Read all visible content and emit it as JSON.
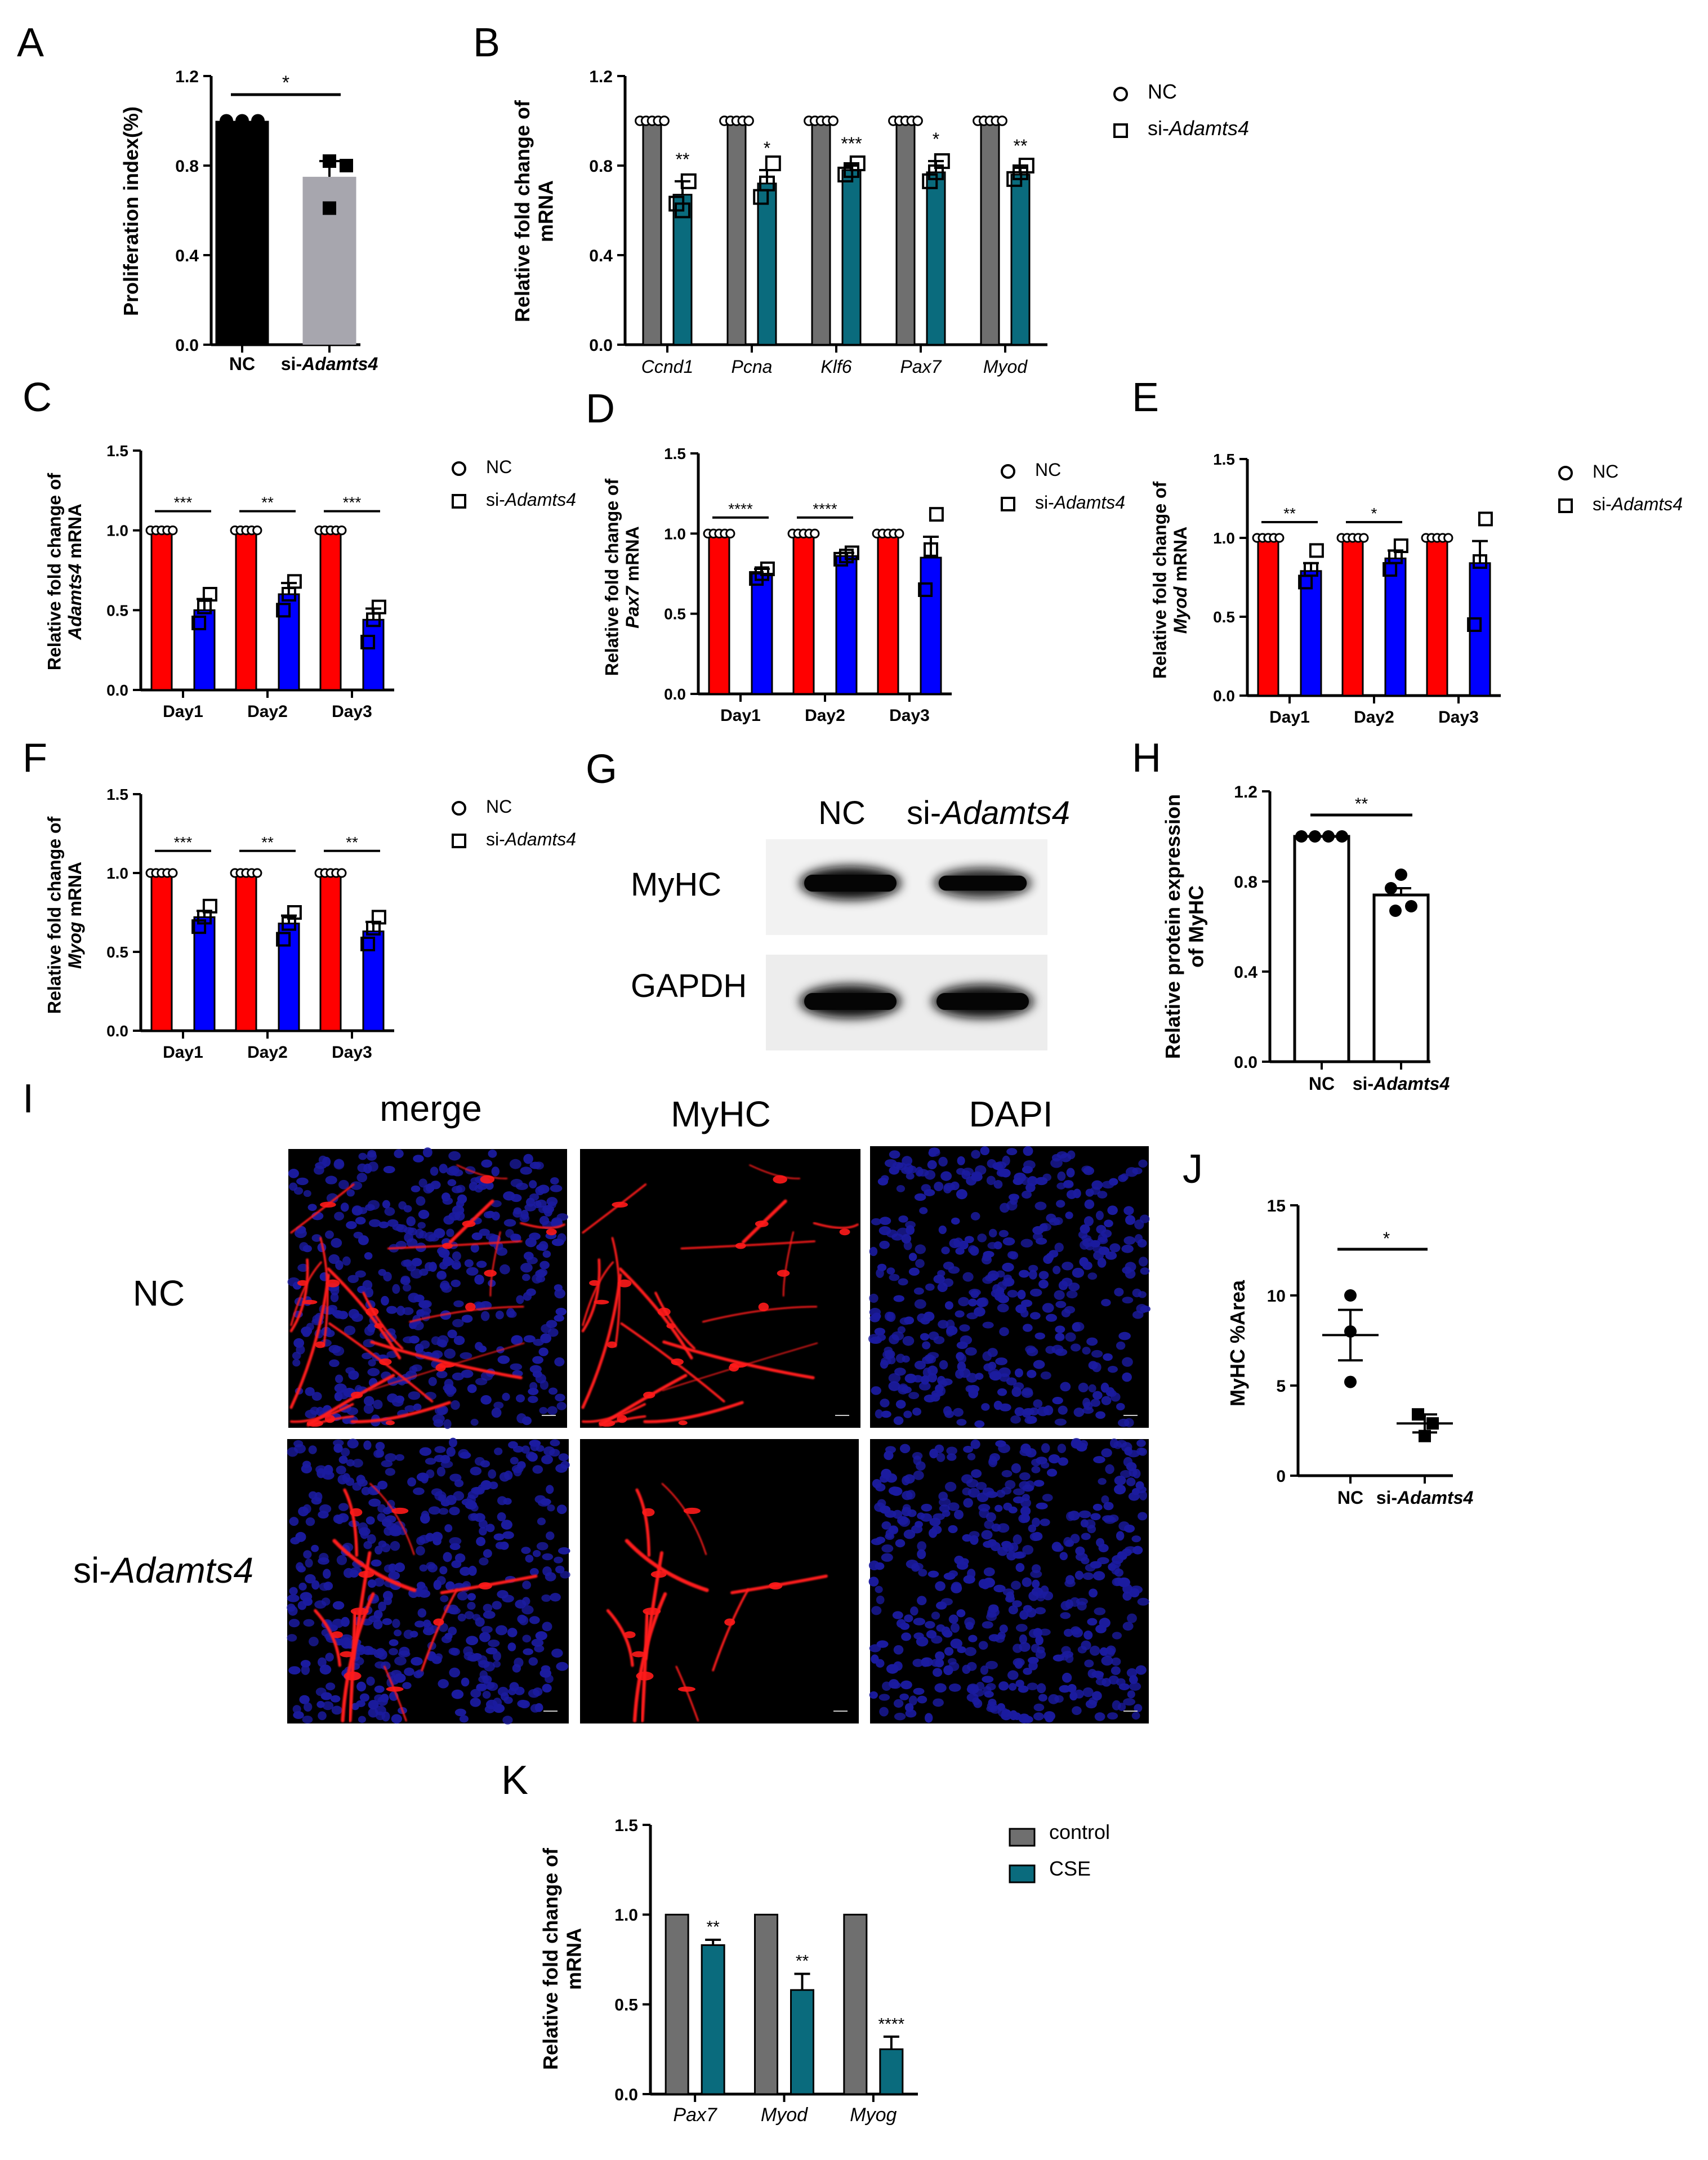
{
  "panel_letters": [
    "A",
    "B",
    "C",
    "D",
    "E",
    "F",
    "G",
    "H",
    "I",
    "J",
    "K"
  ],
  "colors": {
    "black": "#000000",
    "gray": "#a7a6ae",
    "dark_gray": "#6f6f6f",
    "teal": "#0a6b7d",
    "red": "#ff0000",
    "blue": "#0000ff",
    "img_blue": "#1b1ba0",
    "img_red": "#ff1a1a",
    "img_bg": "#000000"
  },
  "chart_data": [
    {
      "id": "A",
      "type": "bar",
      "ylabel": "Proliferation index(%)",
      "ylim": [
        0,
        1.2
      ],
      "yticks": [
        "0.0",
        "0.4",
        "0.8",
        "1.2"
      ],
      "ytick_values": [
        0,
        0.4,
        0.8,
        1.2
      ],
      "categories": [
        {
          "plain": "NC",
          "it": ""
        },
        {
          "plain": "si-",
          "it": "Adamts4"
        }
      ],
      "values": [
        1.0,
        0.75
      ],
      "errors": [
        0.0,
        0.07
      ],
      "colors": [
        "#000000",
        "#a7a6ae"
      ],
      "points": [
        [
          1.0,
          1.0,
          1.0
        ],
        [
          0.82,
          0.8,
          0.61
        ]
      ],
      "point_shapes": [
        "circle",
        "square"
      ],
      "significance": [
        {
          "from": 0,
          "to": 1,
          "label": "*"
        }
      ]
    },
    {
      "id": "B",
      "type": "bar",
      "ylabel_lines": [
        "Relative fold change of",
        "mRNA"
      ],
      "ylim": [
        0,
        1.2
      ],
      "yticks": [
        "0.0",
        "0.4",
        "0.8",
        "1.2"
      ],
      "ytick_values": [
        0,
        0.4,
        0.8,
        1.2
      ],
      "categories": [
        "Ccnd1",
        "Pcna",
        "Klf6",
        "Pax7",
        "Myod"
      ],
      "series": [
        {
          "name": "NC",
          "marker": "circle",
          "color": "#6f6f6f",
          "values": [
            1.0,
            1.0,
            1.0,
            1.0,
            1.0
          ],
          "errors": [
            0,
            0,
            0,
            0,
            0
          ]
        },
        {
          "name_plain": "si-",
          "name_it": "Adamts4",
          "marker": "square",
          "color": "#0a6b7d",
          "values": [
            0.67,
            0.72,
            0.78,
            0.77,
            0.76
          ],
          "errors": [
            0.06,
            0.06,
            0.02,
            0.05,
            0.03
          ]
        }
      ],
      "significance": [
        "**",
        "*",
        "***",
        "*",
        "**"
      ]
    },
    {
      "id": "C",
      "type": "bar",
      "ylabel_line1": "Relative fold change of",
      "ylabel_it": "Adamts4",
      "ylabel_rest": " mRNA",
      "ylim": [
        0,
        1.5
      ],
      "yticks": [
        "0.0",
        "0.5",
        "1.0",
        "1.5"
      ],
      "ytick_values": [
        0,
        0.5,
        1.0,
        1.5
      ],
      "categories": [
        "Day1",
        "Day2",
        "Day3"
      ],
      "series": [
        {
          "name": "NC",
          "marker": "circle",
          "color": "#ff0000",
          "values": [
            1.0,
            1.0,
            1.0
          ],
          "errors": [
            0,
            0,
            0
          ]
        },
        {
          "name_plain": "si-",
          "name_it": "Adamts4",
          "marker": "square",
          "color": "#0000ff",
          "values": [
            0.5,
            0.6,
            0.44
          ],
          "errors": [
            0.07,
            0.07,
            0.07
          ]
        }
      ],
      "significance": [
        "***",
        "**",
        "***"
      ]
    },
    {
      "id": "D",
      "type": "bar",
      "ylabel_line1": "Relative fold change of",
      "ylabel_it": "Pax7",
      "ylabel_rest": " mRNA",
      "ylim": [
        0,
        1.5
      ],
      "yticks": [
        "0.0",
        "0.5",
        "1.0",
        "1.5"
      ],
      "ytick_values": [
        0,
        0.5,
        1.0,
        1.5
      ],
      "categories": [
        "Day1",
        "Day2",
        "Day3"
      ],
      "series": [
        {
          "name": "NC",
          "marker": "circle",
          "color": "#ff0000",
          "values": [
            1.0,
            1.0,
            1.0
          ],
          "errors": [
            0,
            0,
            0
          ]
        },
        {
          "name_plain": "si-",
          "name_it": "Adamts4",
          "marker": "square",
          "color": "#0000ff",
          "values": [
            0.75,
            0.86,
            0.85
          ],
          "errors": [
            0.03,
            0.02,
            0.13
          ]
        }
      ],
      "significance": [
        "****",
        "****",
        ""
      ]
    },
    {
      "id": "E",
      "type": "bar",
      "ylabel_line1": "Relative fold change of",
      "ylabel_it": "Myod",
      "ylabel_rest": " mRNA",
      "ylim": [
        0,
        1.5
      ],
      "yticks": [
        "0.0",
        "0.5",
        "1.0",
        "1.5"
      ],
      "ytick_values": [
        0,
        0.5,
        1.0,
        1.5
      ],
      "categories": [
        "Day1",
        "Day2",
        "Day3"
      ],
      "series": [
        {
          "name": "NC",
          "marker": "circle",
          "color": "#ff0000",
          "values": [
            1.0,
            1.0,
            1.0
          ],
          "errors": [
            0,
            0,
            0
          ]
        },
        {
          "name_plain": "si-",
          "name_it": "Adamts4",
          "marker": "square",
          "color": "#0000ff",
          "values": [
            0.79,
            0.87,
            0.84
          ],
          "errors": [
            0.05,
            0.05,
            0.14
          ]
        }
      ],
      "significance": [
        "**",
        "*",
        ""
      ]
    },
    {
      "id": "F",
      "type": "bar",
      "ylabel_line1": "Relative fold change of",
      "ylabel_it": "Myog",
      "ylabel_rest": " mRNA",
      "ylim": [
        0,
        1.5
      ],
      "yticks": [
        "0.0",
        "0.5",
        "1.0",
        "1.5"
      ],
      "ytick_values": [
        0,
        0.5,
        1.0,
        1.5
      ],
      "categories": [
        "Day1",
        "Day2",
        "Day3"
      ],
      "series": [
        {
          "name": "NC",
          "marker": "circle",
          "color": "#ff0000",
          "values": [
            1.0,
            1.0,
            1.0
          ],
          "errors": [
            0,
            0,
            0
          ]
        },
        {
          "name_plain": "si-",
          "name_it": "Adamts4",
          "marker": "square",
          "color": "#0000ff",
          "values": [
            0.72,
            0.68,
            0.63
          ],
          "errors": [
            0.04,
            0.05,
            0.06
          ]
        }
      ],
      "significance": [
        "***",
        "**",
        "**"
      ]
    },
    {
      "id": "H",
      "type": "bar",
      "ylabel_lines": [
        "Relative protein expression",
        "of MyHC"
      ],
      "ylim": [
        0,
        1.2
      ],
      "yticks": [
        "0.0",
        "0.4",
        "0.8",
        "1.2"
      ],
      "ytick_values": [
        0,
        0.4,
        0.8,
        1.2
      ],
      "categories": [
        {
          "plain": "NC",
          "it": ""
        },
        {
          "plain": "si-",
          "it": "Adamts4"
        }
      ],
      "values": [
        1.0,
        0.74
      ],
      "errors": [
        0.0,
        0.03
      ],
      "colors": [
        "#ffffff",
        "#ffffff"
      ],
      "points": [
        [
          1.0,
          1.0,
          1.0,
          1.0
        ],
        [
          0.83,
          0.77,
          0.69,
          0.67
        ]
      ],
      "point_shapes": [
        "circle",
        "circle"
      ],
      "significance": [
        {
          "from": 0,
          "to": 1,
          "label": "**"
        }
      ]
    },
    {
      "id": "J",
      "type": "scatter",
      "ylabel": "MyHC %Area",
      "ylim": [
        0,
        15
      ],
      "yticks": [
        "0",
        "5",
        "10",
        "15"
      ],
      "ytick_values": [
        0,
        5,
        10,
        15
      ],
      "categories": [
        {
          "plain": "NC",
          "it": ""
        },
        {
          "plain": "si-",
          "it": "Adamts4"
        }
      ],
      "means": [
        7.8,
        2.9
      ],
      "errors": [
        1.4,
        0.5
      ],
      "points": [
        [
          10.0,
          8.0,
          5.2
        ],
        [
          3.4,
          2.9,
          2.2
        ]
      ],
      "point_shapes": [
        "circle",
        "square"
      ],
      "significance": [
        {
          "from": 0,
          "to": 1,
          "label": "*"
        }
      ]
    },
    {
      "id": "K",
      "type": "bar",
      "ylabel_lines": [
        "Relative fold change of",
        "mRNA"
      ],
      "ylim": [
        0,
        1.5
      ],
      "yticks": [
        "0.0",
        "0.5",
        "1.0",
        "1.5"
      ],
      "ytick_values": [
        0,
        0.5,
        1.0,
        1.5
      ],
      "categories": [
        "Pax7",
        "Myod",
        "Myog"
      ],
      "series": [
        {
          "name": "control",
          "color": "#6f6f6f",
          "values": [
            1.0,
            1.0,
            1.0
          ],
          "errors": [
            0,
            0,
            0
          ]
        },
        {
          "name": "CSE",
          "color": "#0a6b7d",
          "values": [
            0.83,
            0.58,
            0.25
          ],
          "errors": [
            0.03,
            0.09,
            0.07
          ]
        }
      ],
      "significance": [
        "**",
        "**",
        "****"
      ]
    }
  ],
  "blot": {
    "col_nc": "NC",
    "col_si_plain": "si-",
    "col_si_it": "Adamts4",
    "row1": "MyHC",
    "row2": "GAPDH",
    "band_intensity": [
      [
        1.0,
        0.75
      ],
      [
        1.0,
        1.0
      ]
    ]
  },
  "microscopy": {
    "col_merge": "merge",
    "col_myhc": "MyHC",
    "col_dapi": "DAPI",
    "row_nc": "NC",
    "row_si_plain": "si-",
    "row_si_it": "Adamts4"
  }
}
